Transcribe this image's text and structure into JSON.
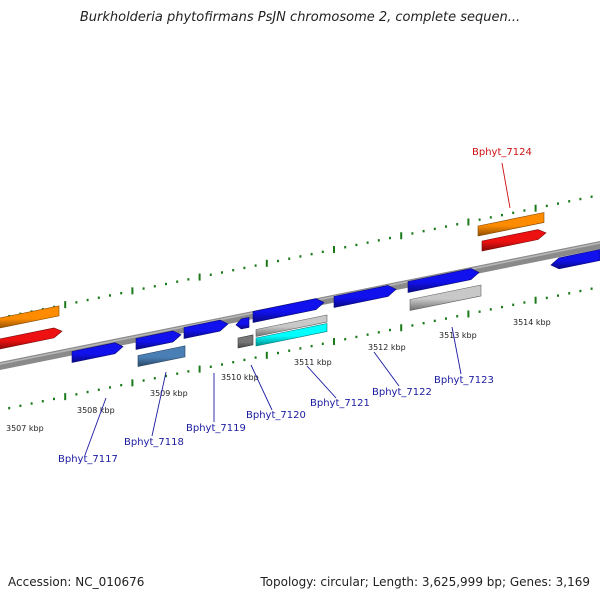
{
  "title": "Burkholderia phytofirmans PsJN chromosome 2, complete sequen...",
  "footer": {
    "accession": "Accession: NC_010676",
    "topology": "Topology: circular; Length: 3,625,999 bp; Genes: 3,169"
  },
  "colors": {
    "backbone": "#8a8a8a",
    "dots": "#1a7a1a",
    "label_blue": "#1a1aa0",
    "label_red": "#cc1111",
    "blue": "#1111ee",
    "red": "#ee1111",
    "orange": "#ff8c00",
    "steel": "#4a7fb5",
    "gray_small": "#777777",
    "light_gray": "#c8c8c8",
    "cyan": "#00ffff"
  },
  "scale_labels": [
    "3507 kbp",
    "3508 kbp",
    "3509 kbp",
    "3510 kbp",
    "3511 kbp",
    "3512 kbp",
    "3513 kbp",
    "3514 kbp"
  ],
  "gene_labels": [
    "Bphyt_7117",
    "Bphyt_7118",
    "Bphyt_7119",
    "Bphyt_7120",
    "Bphyt_7121",
    "Bphyt_7122",
    "Bphyt_7123",
    "Bphyt_7124"
  ]
}
